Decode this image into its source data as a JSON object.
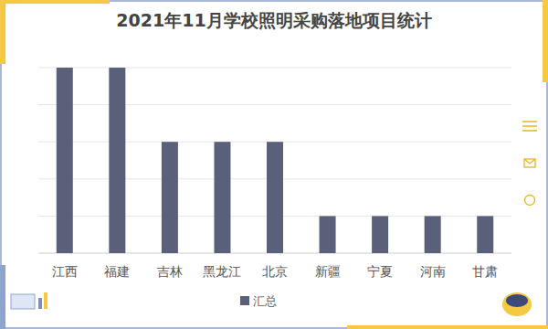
{
  "chart_data": {
    "type": "bar",
    "title": "2021年11月学校照明采购落地项目统计",
    "categories": [
      "江西",
      "福建",
      "吉林",
      "黑龙江",
      "北京",
      "新疆",
      "宁夏",
      "河南",
      "甘肃"
    ],
    "series": [
      {
        "name": "汇总",
        "color": "#5a6079",
        "values": [
          5,
          5,
          3,
          3,
          3,
          1,
          1,
          1,
          1
        ]
      }
    ],
    "ylim": [
      0,
      5
    ],
    "yticks": [
      0,
      1,
      2,
      3,
      4,
      5
    ],
    "grid": true,
    "legend": "bottom",
    "tick_labels": "x"
  }
}
